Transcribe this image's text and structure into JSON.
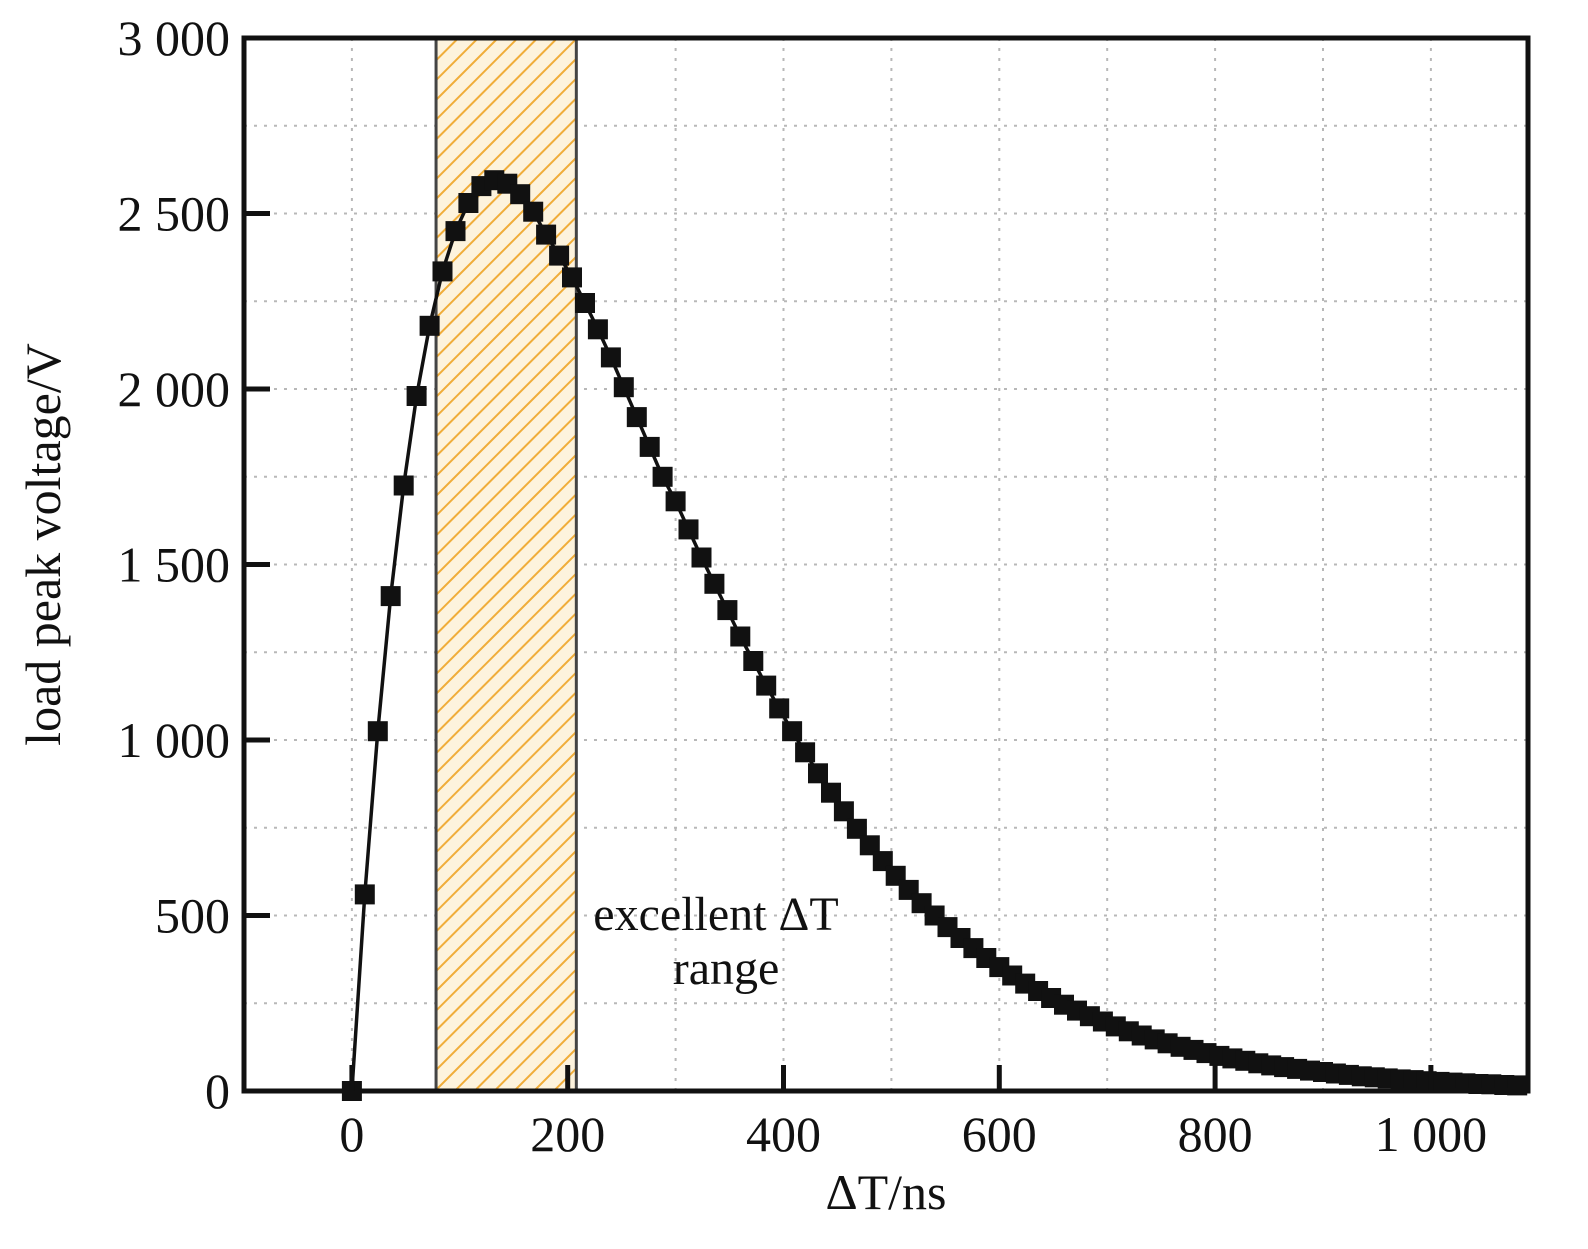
{
  "chart_data": {
    "type": "scatter",
    "xlabel": "ΔT/ns",
    "ylabel": "load peak voltage/V",
    "xlim": [
      -100,
      1090
    ],
    "ylim": [
      0,
      3000
    ],
    "x_ticks": [
      0,
      200,
      400,
      600,
      800,
      1000
    ],
    "x_tick_labels": [
      "0",
      "200",
      "400",
      "600",
      "800",
      "1 000"
    ],
    "y_ticks": [
      0,
      500,
      1000,
      1500,
      2000,
      2500,
      3000
    ],
    "y_tick_labels": [
      "0",
      "500",
      "1 000",
      "1 500",
      "2 000",
      "2 500",
      "3 000"
    ],
    "grid": true,
    "highlight_band": {
      "x_start": 78,
      "x_end": 208,
      "color": "#f5a623",
      "hatch": true
    },
    "annotation": {
      "line1": "excellent ΔT",
      "line2": "range"
    },
    "series": [
      {
        "marker": "square",
        "color": "#111111",
        "x": [
          0,
          12,
          24,
          36,
          48,
          60,
          72,
          84,
          96,
          108,
          120,
          132,
          144,
          156,
          168,
          180,
          192,
          204,
          216,
          228,
          240,
          252,
          264,
          276,
          288,
          300,
          312,
          324,
          336,
          348,
          360,
          372,
          384,
          396,
          408,
          420,
          432,
          444,
          456,
          468,
          480,
          492,
          504,
          516,
          528,
          540,
          552,
          564,
          576,
          588,
          600,
          612,
          624,
          636,
          648,
          660,
          672,
          684,
          696,
          708,
          720,
          732,
          744,
          756,
          768,
          780,
          792,
          804,
          816,
          828,
          840,
          852,
          864,
          876,
          888,
          900,
          912,
          924,
          936,
          948,
          960,
          972,
          984,
          996,
          1008,
          1020,
          1032,
          1044,
          1056,
          1068,
          1080
        ],
        "y": [
          0,
          560,
          1025,
          1410,
          1725,
          1980,
          2180,
          2335,
          2450,
          2530,
          2578,
          2595,
          2585,
          2555,
          2505,
          2440,
          2380,
          2318,
          2245,
          2170,
          2090,
          2005,
          1920,
          1835,
          1750,
          1680,
          1600,
          1520,
          1445,
          1370,
          1295,
          1225,
          1155,
          1090,
          1025,
          965,
          905,
          850,
          797,
          747,
          700,
          655,
          613,
          573,
          535,
          500,
          467,
          436,
          407,
          379,
          353,
          329,
          306,
          285,
          265,
          246,
          229,
          213,
          198,
          184,
          170,
          158,
          147,
          136,
          126,
          117,
          108,
          100,
          93,
          86,
          79,
          73,
          68,
          63,
          58,
          54,
          50,
          46,
          42,
          39,
          36,
          33,
          31,
          28,
          26,
          24,
          22,
          20,
          19,
          17,
          16
        ]
      }
    ]
  }
}
